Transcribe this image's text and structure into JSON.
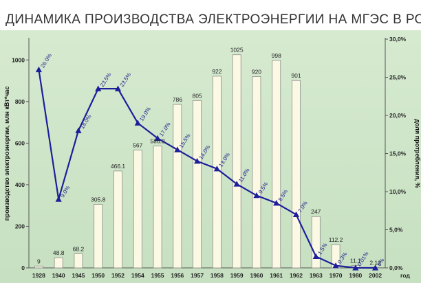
{
  "chart_data": {
    "type": "bar+line",
    "title": "ДИНАМИКА ПРОИЗВОДСТВА ЭЛЕКТРОЭНЕРГИИ  НА МГЭС В РОССИИ",
    "categories": [
      "1928",
      "1940",
      "1945",
      "1950",
      "1952",
      "1954",
      "1955",
      "1956",
      "1957",
      "1958",
      "1959",
      "1960",
      "1961",
      "1962",
      "1963",
      "1970",
      "1980",
      "2002"
    ],
    "xlabel": "год",
    "ylabel_left": "производство электроэнергии, млн кВт*час",
    "ylabel_right": "доля протребления, %",
    "ylim_left": [
      0,
      1100
    ],
    "ylim_right": [
      0,
      30
    ],
    "yticks_left": [
      "0",
      "200",
      "400",
      "600",
      "800",
      "1000"
    ],
    "yticks_right": [
      "0,0%",
      "5,0%",
      "10,0%",
      "15,0%",
      "20,0%",
      "25,0%",
      "30,0%"
    ],
    "grid": false,
    "series": [
      {
        "kind": "bar",
        "values": [
          9,
          48.8,
          68.2,
          305.8,
          466.1,
          567,
          586.3,
          786,
          805,
          922,
          1025,
          920,
          998,
          901,
          247,
          112.2,
          11.1,
          2.12
        ],
        "labels": [
          "9",
          "48.8",
          "68.2",
          "305.8",
          "466.1",
          "567",
          "586.3",
          "786",
          "805",
          "922",
          "1025",
          "920",
          "998",
          "901",
          "247",
          "112.2",
          "11.1",
          "2.12"
        ]
      },
      {
        "kind": "line",
        "values": [
          26.0,
          9.0,
          18.0,
          23.5,
          23.5,
          19.0,
          17.0,
          15.5,
          14.0,
          13.0,
          11.0,
          9.5,
          8.5,
          7.0,
          1.5,
          0.3,
          0.01,
          0.0
        ],
        "labels": [
          "26.0%",
          "9.0%",
          "18.0%",
          "23.5%",
          "23.5%",
          "19.0%",
          "17.0%",
          "15.5%",
          "14.0%",
          "13.0%",
          "11.0%",
          "9.5%",
          "8.5%",
          "7.0%",
          "1.5%",
          "0.3%",
          "0.01%",
          "0%"
        ]
      }
    ]
  },
  "colors": {
    "plot_background": "#cfe6c9",
    "bar_fill": "#fbf8e3",
    "bar_stroke": "#8c8c8c",
    "line": "#1c1f9a",
    "title": "#333333"
  }
}
